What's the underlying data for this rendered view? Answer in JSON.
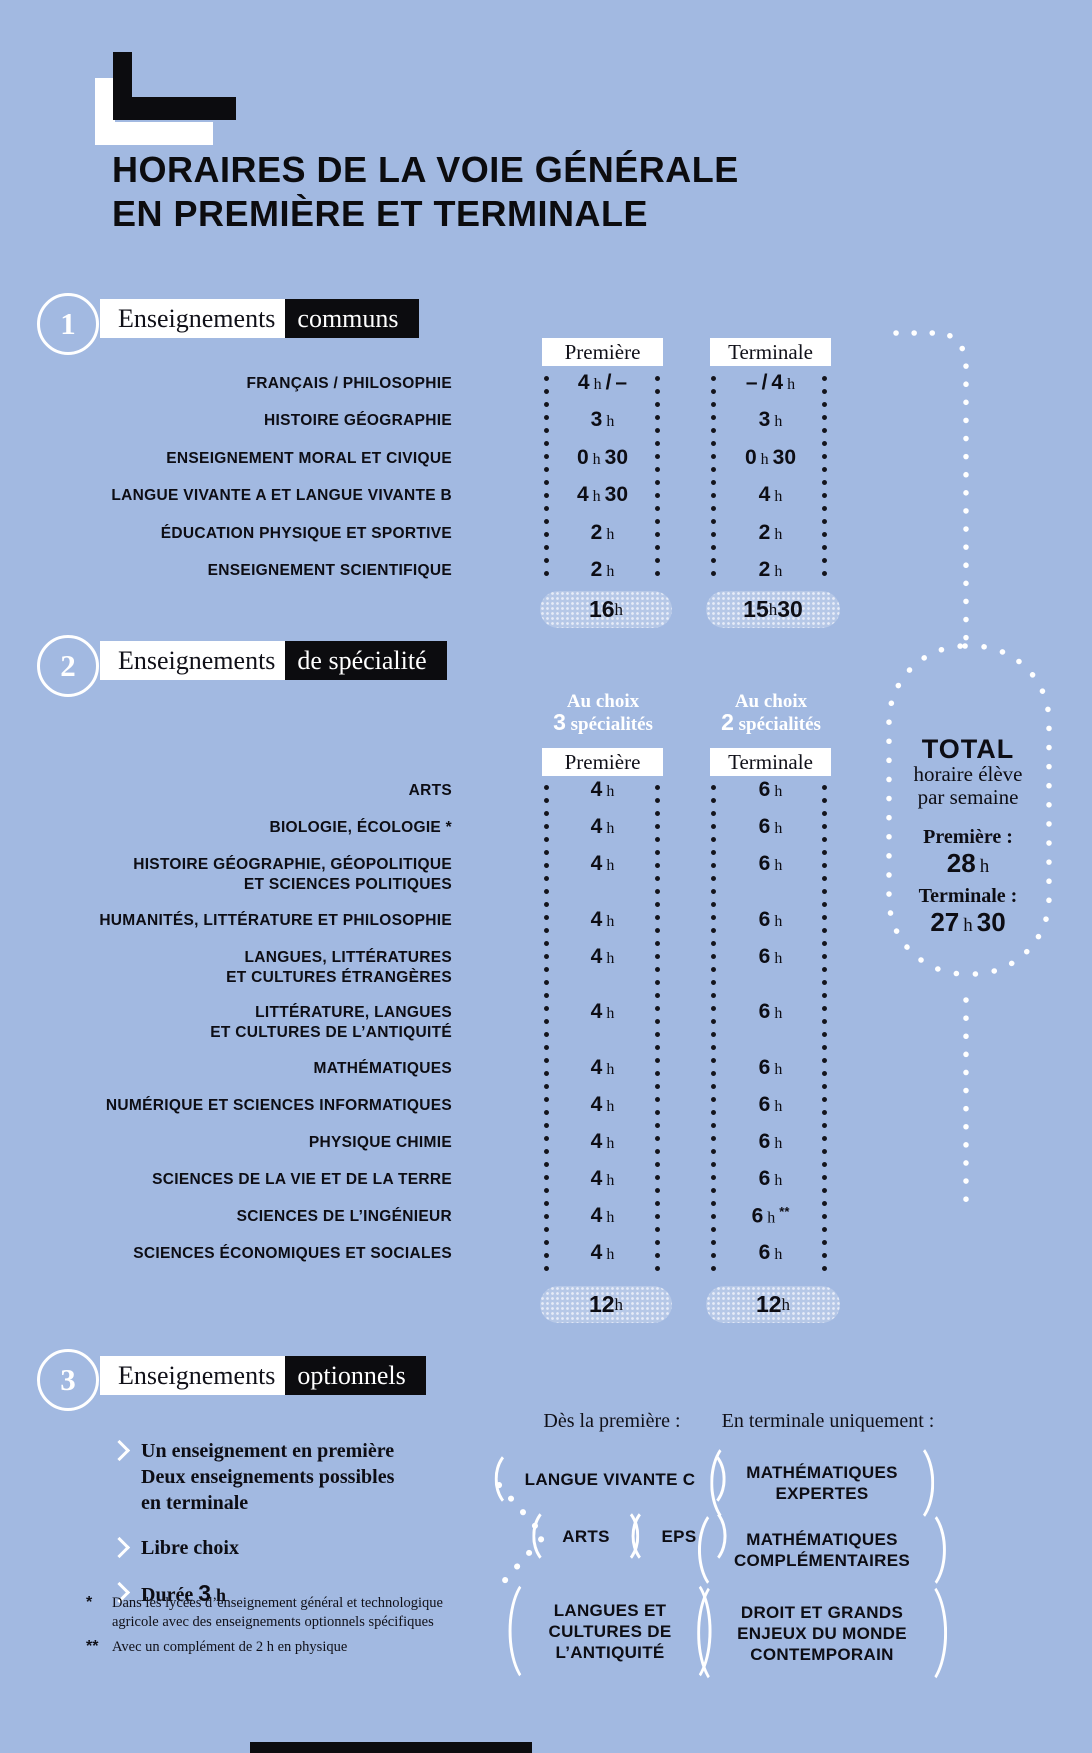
{
  "page": {
    "title_line1": "HORAIRES DE LA VOIE GÉNÉRALE",
    "title_line2": "EN PREMIÈRE ET TERMINALE",
    "background_color": "#a2b9e1",
    "accent_black": "#0c0c0f",
    "accent_white": "#ffffff"
  },
  "sections": [
    {
      "number": "1",
      "label_plain": "Enseignements",
      "label_highlight": "communs",
      "columns": [
        "Première",
        "Terminale"
      ],
      "rows": [
        {
          "label": "FRANÇAIS / PHILOSOPHIE",
          "premiere": "4 h / –",
          "terminale": "– / 4 h"
        },
        {
          "label": "HISTOIRE GÉOGRAPHIE",
          "premiere": "3 h",
          "terminale": "3 h"
        },
        {
          "label": "ENSEIGNEMENT MORAL ET CIVIQUE",
          "premiere": "0 h 30",
          "terminale": "0 h 30"
        },
        {
          "label": "LANGUE VIVANTE A ET LANGUE VIVANTE B",
          "premiere": "4 h 30",
          "terminale": "4 h"
        },
        {
          "label": "ÉDUCATION PHYSIQUE ET SPORTIVE",
          "premiere": "2 h",
          "terminale": "2 h"
        },
        {
          "label": "ENSEIGNEMENT SCIENTIFIQUE",
          "premiere": "2 h",
          "terminale": "2 h"
        }
      ],
      "totals": {
        "premiere": "16 h",
        "terminale": "15 h 30"
      }
    },
    {
      "number": "2",
      "label_plain": "Enseignements",
      "label_highlight": "de spécialité",
      "choice_notes": [
        {
          "line1": "Au choix",
          "count": "3",
          "rest": "spécialités"
        },
        {
          "line1": "Au choix",
          "count": "2",
          "rest": "spécialités"
        }
      ],
      "columns": [
        "Première",
        "Terminale"
      ],
      "rows": [
        {
          "label": "ARTS",
          "premiere": "4 h",
          "terminale": "6 h"
        },
        {
          "label": "BIOLOGIE, ÉCOLOGIE *",
          "premiere": "4 h",
          "terminale": "6 h"
        },
        {
          "label": "HISTOIRE GÉOGRAPHIE, GÉOPOLITIQUE\nET SCIENCES POLITIQUES",
          "premiere": "4 h",
          "terminale": "6 h"
        },
        {
          "label": "HUMANITÉS, LITTÉRATURE ET PHILOSOPHIE",
          "premiere": "4 h",
          "terminale": "6 h"
        },
        {
          "label": "LANGUES, LITTÉRATURES\nET CULTURES ÉTRANGÈRES",
          "premiere": "4 h",
          "terminale": "6 h"
        },
        {
          "label": "LITTÉRATURE, LANGUES\nET CULTURES DE L’ANTIQUITÉ",
          "premiere": "4 h",
          "terminale": "6 h"
        },
        {
          "label": "MATHÉMATIQUES",
          "premiere": "4 h",
          "terminale": "6 h"
        },
        {
          "label": "NUMÉRIQUE ET SCIENCES INFORMATIQUES",
          "premiere": "4 h",
          "terminale": "6 h"
        },
        {
          "label": "PHYSIQUE CHIMIE",
          "premiere": "4 h",
          "terminale": "6 h"
        },
        {
          "label": "SCIENCES DE LA VIE ET DE LA TERRE",
          "premiere": "4 h",
          "terminale": "6 h"
        },
        {
          "label": "SCIENCES DE L’INGÉNIEUR",
          "premiere": "4 h",
          "terminale": "6 h **"
        },
        {
          "label": "SCIENCES ÉCONOMIQUES ET SOCIALES",
          "premiere": "4 h",
          "terminale": "6 h"
        }
      ],
      "totals": {
        "premiere": "12 h",
        "terminale": "12 h"
      }
    },
    {
      "number": "3",
      "label_plain": "Enseignements",
      "label_highlight": "optionnels",
      "bullets": [
        {
          "lines": [
            "Un enseignement en première",
            "Deux enseignements possibles",
            "en terminale"
          ]
        },
        {
          "lines": [
            "Libre choix"
          ]
        },
        {
          "lines": [
            "Durée"
          ],
          "value": "3 h"
        }
      ],
      "options_groups": [
        {
          "heading": "Dès la première :",
          "options": [
            "LANGUE VIVANTE C",
            "ARTS",
            "EPS",
            "LANGUES ET\nCULTURES DE\nL’ANTIQUITÉ"
          ]
        },
        {
          "heading": "En terminale uniquement :",
          "options": [
            "MATHÉMATIQUES\nEXPERTES",
            "MATHÉMATIQUES\nCOMPLÉMENTAIRES",
            "DROIT ET GRANDS\nENJEUX DU MONDE\nCONTEMPORAIN"
          ]
        }
      ]
    }
  ],
  "total_sidebar": {
    "title": "TOTAL",
    "subtitle_line1": "horaire élève",
    "subtitle_line2": "par semaine",
    "premiere_label": "Première :",
    "premiere_value": "28 h",
    "terminale_label": "Terminale :",
    "terminale_value": "27 h 30"
  },
  "footnotes": [
    {
      "marker": "*",
      "text": "Dans les lycées d’enseignement général et technologique agricole avec des enseignements optionnels spécifiques"
    },
    {
      "marker": "**",
      "text": "Avec un complément de 2 h en physique"
    }
  ]
}
